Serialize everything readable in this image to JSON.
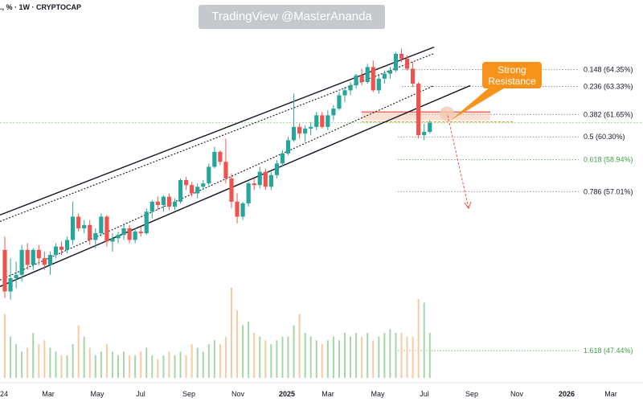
{
  "header": {
    "symbol_line": "., % · 1W · CRYPTOCAP"
  },
  "watermark": {
    "text": "TradingView @MasterAnanda"
  },
  "callout": {
    "line1": "Strong",
    "line2": "Resistance"
  },
  "colors": {
    "up": "#26a69a",
    "down": "#ef5350",
    "volume_up": "#a5d6a7",
    "volume_down": "#f8c9a3",
    "fib_green": "#43a047",
    "fib_grey": "#787b86",
    "accent": "#f7931a",
    "current": "#9be08f"
  },
  "chart_data": {
    "type": "candlestick",
    "title": "",
    "timeframe": "1W",
    "unit": "%",
    "x_tick_labels": [
      "24",
      "Mar",
      "May",
      "Jul",
      "Sep",
      "Nov",
      "2025",
      "Mar",
      "May",
      "Jul",
      "Sep",
      "Nov",
      "2026",
      "Mar"
    ],
    "ylim": [
      45.8,
      66.6
    ],
    "fib_levels": [
      {
        "ratio": 0.148,
        "label": "0.148 (64.35%)",
        "value": 64.35
      },
      {
        "ratio": 0.236,
        "label": "0.236 (63.33%)",
        "value": 63.33
      },
      {
        "ratio": 0.382,
        "label": "0.382 (61.65%)",
        "value": 61.65
      },
      {
        "ratio": 0.5,
        "label": "0.5 (60.30%)",
        "value": 60.3
      },
      {
        "ratio": 0.618,
        "label": "0.618 (58.94%)",
        "value": 58.94
      },
      {
        "ratio": 0.786,
        "label": "0.786 (57.01%)",
        "value": 57.01
      },
      {
        "ratio": 1.618,
        "label": "1.618 (47.44%)",
        "value": 47.44
      }
    ],
    "current_price": 61.15,
    "resistance_zone": [
      61.3,
      61.8
    ],
    "projection": {
      "from": 61.6,
      "to": 56.0
    },
    "channel": {
      "upper": {
        "start": 55.6,
        "end": 65.7
      },
      "lower": {
        "start": 51.3,
        "end": 63.0
      }
    },
    "candles": [
      [
        53.5,
        54.3,
        50.6,
        51.0
      ],
      [
        51.0,
        53.0,
        50.5,
        51.8
      ],
      [
        51.8,
        52.8,
        51.2,
        52.0
      ],
      [
        52.0,
        53.8,
        51.6,
        53.5
      ],
      [
        53.5,
        53.9,
        52.3,
        52.6
      ],
      [
        52.6,
        53.6,
        52.3,
        53.5
      ],
      [
        53.5,
        53.8,
        52.6,
        53.0
      ],
      [
        53.0,
        53.4,
        52.3,
        52.6
      ],
      [
        52.6,
        53.4,
        52.0,
        53.2
      ],
      [
        53.2,
        53.9,
        53.0,
        53.7
      ],
      [
        53.7,
        54.0,
        53.2,
        53.5
      ],
      [
        53.5,
        54.3,
        53.3,
        54.1
      ],
      [
        54.1,
        56.4,
        53.8,
        55.5
      ],
      [
        55.5,
        55.7,
        54.6,
        54.8
      ],
      [
        54.8,
        55.3,
        54.5,
        55.0
      ],
      [
        55.0,
        55.3,
        53.8,
        54.1
      ],
      [
        54.1,
        54.8,
        53.6,
        54.5
      ],
      [
        54.5,
        55.7,
        54.3,
        55.5
      ],
      [
        55.5,
        55.6,
        53.7,
        54.0
      ],
      [
        54.0,
        54.5,
        53.4,
        54.2
      ],
      [
        54.2,
        54.6,
        53.9,
        54.4
      ],
      [
        54.4,
        55.0,
        54.1,
        54.8
      ],
      [
        54.8,
        55.0,
        53.9,
        54.1
      ],
      [
        54.1,
        54.8,
        53.9,
        54.6
      ],
      [
        54.6,
        54.9,
        54.3,
        54.5
      ],
      [
        54.5,
        56.0,
        54.4,
        55.8
      ],
      [
        55.8,
        56.5,
        55.4,
        56.4
      ],
      [
        56.4,
        56.7,
        55.9,
        56.2
      ],
      [
        56.2,
        56.8,
        55.8,
        56.7
      ],
      [
        56.7,
        56.9,
        55.9,
        56.1
      ],
      [
        56.1,
        56.6,
        55.9,
        56.4
      ],
      [
        56.4,
        57.8,
        56.3,
        57.7
      ],
      [
        57.7,
        57.9,
        57.1,
        57.4
      ],
      [
        57.4,
        57.6,
        56.7,
        56.9
      ],
      [
        56.9,
        57.5,
        56.6,
        57.3
      ],
      [
        57.3,
        57.7,
        57.1,
        57.5
      ],
      [
        57.5,
        58.7,
        57.4,
        58.5
      ],
      [
        58.5,
        59.7,
        58.4,
        59.4
      ],
      [
        59.4,
        59.5,
        58.6,
        58.8
      ],
      [
        58.8,
        60.2,
        57.5,
        57.8
      ],
      [
        57.8,
        58.1,
        56.0,
        56.4
      ],
      [
        56.4,
        56.9,
        55.1,
        55.5
      ],
      [
        55.5,
        56.4,
        55.3,
        56.3
      ],
      [
        56.3,
        57.6,
        56.1,
        57.5
      ],
      [
        57.5,
        57.8,
        57.1,
        57.4
      ],
      [
        57.4,
        58.5,
        57.2,
        58.2
      ],
      [
        58.2,
        58.4,
        57.1,
        57.3
      ],
      [
        57.3,
        58.2,
        57.1,
        58.0
      ],
      [
        58.0,
        58.9,
        57.8,
        58.7
      ],
      [
        58.7,
        59.5,
        58.5,
        59.3
      ],
      [
        59.3,
        60.3,
        59.2,
        60.1
      ],
      [
        60.1,
        62.9,
        60.0,
        60.9
      ],
      [
        60.9,
        61.1,
        60.2,
        60.5
      ],
      [
        60.5,
        61.0,
        60.0,
        60.8
      ],
      [
        60.8,
        61.2,
        60.4,
        60.9
      ],
      [
        60.9,
        61.8,
        60.7,
        61.6
      ],
      [
        61.6,
        61.8,
        60.8,
        60.9
      ],
      [
        60.9,
        61.9,
        60.7,
        61.6
      ],
      [
        61.6,
        62.2,
        61.3,
        62.0
      ],
      [
        62.0,
        63.0,
        61.9,
        62.8
      ],
      [
        62.8,
        63.3,
        62.4,
        63.1
      ],
      [
        63.1,
        63.6,
        62.8,
        63.4
      ],
      [
        63.4,
        64.1,
        63.2,
        64.0
      ],
      [
        64.0,
        64.4,
        63.4,
        63.6
      ],
      [
        63.6,
        64.7,
        63.5,
        64.5
      ],
      [
        64.5,
        64.9,
        63.0,
        63.1
      ],
      [
        63.1,
        64.0,
        62.9,
        63.8
      ],
      [
        63.8,
        64.3,
        63.5,
        64.1
      ],
      [
        64.1,
        64.5,
        63.8,
        64.3
      ],
      [
        64.3,
        65.4,
        64.2,
        65.3
      ],
      [
        65.3,
        65.6,
        64.8,
        65.0
      ],
      [
        65.0,
        65.2,
        64.3,
        64.4
      ],
      [
        64.4,
        64.8,
        63.3,
        63.5
      ],
      [
        63.5,
        63.6,
        60.2,
        60.4
      ],
      [
        60.4,
        61.1,
        60.1,
        60.6
      ],
      [
        60.6,
        61.3,
        60.5,
        61.15
      ]
    ],
    "volumes": [
      0.85,
      0.55,
      0.45,
      0.35,
      0.4,
      0.6,
      0.45,
      0.5,
      0.4,
      0.35,
      0.3,
      0.3,
      0.45,
      0.7,
      0.55,
      0.4,
      0.3,
      0.35,
      0.45,
      0.35,
      0.3,
      0.35,
      0.3,
      0.3,
      0.35,
      0.4,
      0.3,
      0.25,
      0.3,
      0.35,
      0.3,
      0.35,
      0.3,
      0.45,
      0.4,
      0.35,
      0.45,
      0.5,
      0.45,
      0.55,
      1.2,
      0.9,
      0.7,
      0.75,
      0.6,
      0.55,
      0.5,
      0.45,
      0.5,
      0.55,
      0.55,
      0.7,
      0.85,
      0.6,
      0.55,
      0.5,
      0.45,
      0.5,
      0.55,
      0.5,
      0.6,
      0.55,
      0.6,
      0.55,
      0.6,
      0.5,
      0.55,
      0.6,
      0.65,
      0.6,
      0.6,
      0.55,
      0.55,
      1.05,
      1.0,
      0.6
    ]
  }
}
